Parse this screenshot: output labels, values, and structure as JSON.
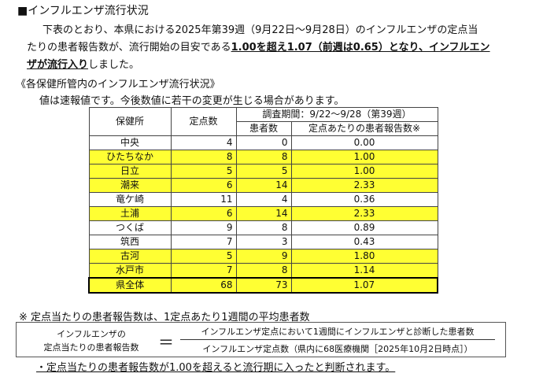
{
  "title": "■インフルエンザ流行状況",
  "para": {
    "l1": "下表のとおり、本県における2025年第39週（9月22日～9月28日）のインフルエンザの定点当",
    "l2a": "たりの患者報告数が、流行開始の目安である",
    "l2b": "1.00を超え1.07（前週は0.65）となり、インフルエン",
    "l3a": "ザが流行入り",
    "l3b": "しました。"
  },
  "section": "《各保健所管内のインフルエンザ流行状況》",
  "note": "値は速報値です。今後数値に若干の変更が生じる場合があります。",
  "table": {
    "h_office": "保健所",
    "h_points": "定点数",
    "h_period": "調査期間：9/22～9/28（第39週）",
    "h_patients": "患者数",
    "h_rate": "定点あたりの患者報告数※",
    "rows": [
      {
        "name": "中央",
        "points": "4",
        "patients": "0",
        "rate": "0.00",
        "hl": false
      },
      {
        "name": "ひたちなか",
        "points": "8",
        "patients": "8",
        "rate": "1.00",
        "hl": true
      },
      {
        "name": "日立",
        "points": "5",
        "patients": "5",
        "rate": "1.00",
        "hl": true
      },
      {
        "name": "潮来",
        "points": "6",
        "patients": "14",
        "rate": "2.33",
        "hl": true
      },
      {
        "name": "竜ケ崎",
        "points": "11",
        "patients": "4",
        "rate": "0.36",
        "hl": false
      },
      {
        "name": "土浦",
        "points": "6",
        "patients": "14",
        "rate": "2.33",
        "hl": true
      },
      {
        "name": "つくば",
        "points": "9",
        "patients": "8",
        "rate": "0.89",
        "hl": false
      },
      {
        "name": "筑西",
        "points": "7",
        "patients": "3",
        "rate": "0.43",
        "hl": false
      },
      {
        "name": "古河",
        "points": "5",
        "patients": "9",
        "rate": "1.80",
        "hl": true
      },
      {
        "name": "水戸市",
        "points": "7",
        "patients": "8",
        "rate": "1.14",
        "hl": true
      },
      {
        "name": "県全体",
        "points": "68",
        "patients": "73",
        "rate": "1.07",
        "hl": true
      }
    ]
  },
  "footnote": "※  定点当たりの患者報告数は、1定点あたり1週間の平均患者数",
  "formula": {
    "left1": "インフルエンザの",
    "left2": "定点当たりの患者報告数",
    "eq": "＝",
    "num": "インフルエンザ定点において1週間にインフルエンザと診断した患者数",
    "den": "インフルエンザ定点数（県内に68医療機関［2025年10月2日時点］）"
  },
  "bullet": "・定点当たりの患者報告数が1.00を超えると流行期に入ったと判断されます。",
  "highlight_color": "#ffff33"
}
